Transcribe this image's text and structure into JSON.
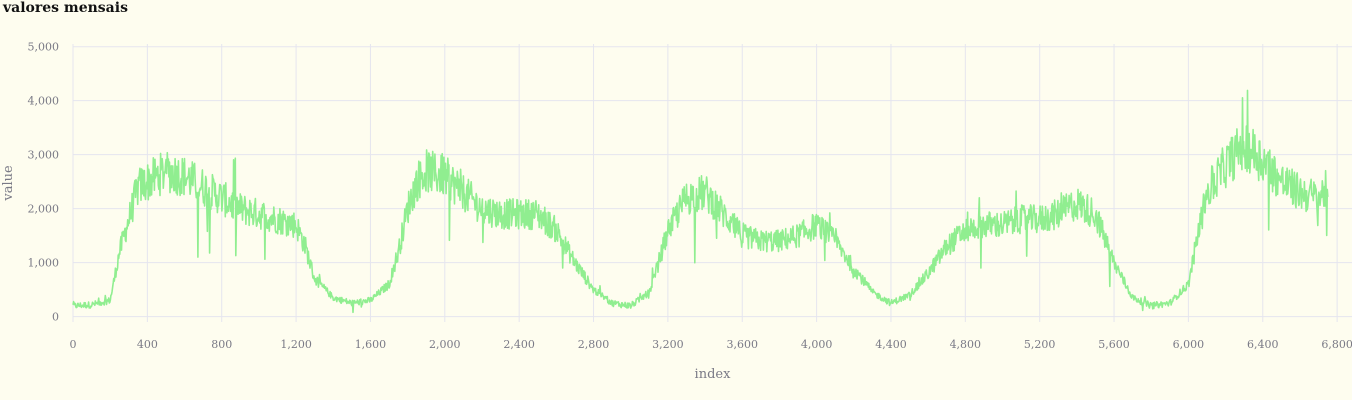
{
  "chart_data": {
    "type": "line",
    "title": "valores mensais",
    "xlabel": "index",
    "ylabel": "value",
    "xlim": [
      0,
      6880
    ],
    "ylim": [
      -100,
      5050
    ],
    "x_ticks": [
      0,
      400,
      800,
      1200,
      1600,
      2000,
      2400,
      2800,
      3200,
      3600,
      4000,
      4400,
      4800,
      5200,
      5600,
      6000,
      6400,
      6800
    ],
    "x_tick_labels": [
      "0",
      "400",
      "800",
      "1,200",
      "1,600",
      "2,000",
      "2,400",
      "2,800",
      "3,200",
      "3,600",
      "4,000",
      "4,400",
      "4,800",
      "5,200",
      "5,600",
      "6,000",
      "6,400",
      "6,800"
    ],
    "y_ticks": [
      0,
      1000,
      2000,
      3000,
      4000,
      5000
    ],
    "y_tick_labels": [
      "0",
      "1,000",
      "2,000",
      "3,000",
      "4,000",
      "5,000"
    ],
    "grid": true,
    "legend": "none",
    "series": [
      {
        "color": "#90ee90",
        "x": [
          0,
          100,
          200,
          250,
          300,
          350,
          400,
          500,
          600,
          700,
          800,
          900,
          1000,
          1100,
          1200,
          1250,
          1300,
          1400,
          1500,
          1600,
          1700,
          1750,
          1800,
          1850,
          1900,
          2000,
          2100,
          2200,
          2300,
          2400,
          2500,
          2600,
          2700,
          2800,
          2900,
          3000,
          3100,
          3150,
          3200,
          3300,
          3400,
          3500,
          3600,
          3700,
          3800,
          3900,
          4000,
          4100,
          4200,
          4300,
          4400,
          4500,
          4600,
          4700,
          4800,
          4900,
          5000,
          5100,
          5200,
          5300,
          5400,
          5500,
          5600,
          5700,
          5800,
          5900,
          6000,
          6050,
          6100,
          6200,
          6300,
          6400,
          6500,
          6600,
          6700,
          6750
        ],
        "values": [
          200,
          220,
          300,
          1200,
          1800,
          2400,
          2500,
          2700,
          2600,
          2400,
          2200,
          2000,
          1900,
          1800,
          1700,
          1300,
          700,
          350,
          250,
          300,
          600,
          1200,
          2000,
          2500,
          2700,
          2600,
          2300,
          2000,
          1900,
          1900,
          1900,
          1600,
          1000,
          500,
          250,
          200,
          450,
          1000,
          1600,
          2200,
          2300,
          1900,
          1500,
          1400,
          1400,
          1500,
          1700,
          1400,
          900,
          450,
          250,
          400,
          800,
          1300,
          1600,
          1700,
          1700,
          1800,
          1800,
          1900,
          2100,
          1900,
          1000,
          350,
          200,
          250,
          600,
          1500,
          2300,
          2800,
          3200,
          2900,
          2500,
          2300,
          2200,
          2400
        ]
      }
    ]
  }
}
